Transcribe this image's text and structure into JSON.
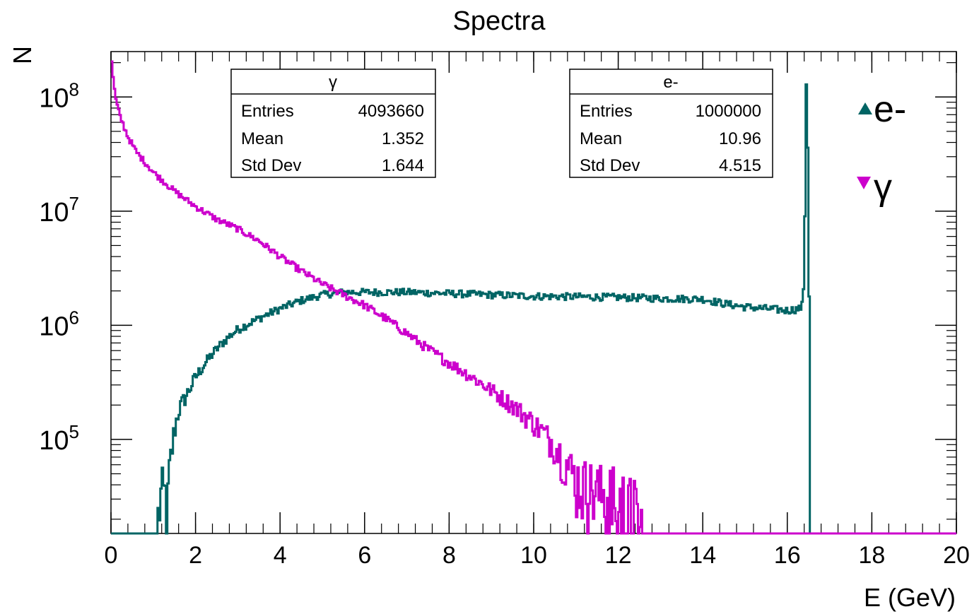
{
  "chart_data": {
    "type": "line",
    "title": "Spectra",
    "xlabel": "E (GeV)",
    "ylabel": "N",
    "xlim": [
      0,
      20
    ],
    "ylim": [
      15000,
      250000000
    ],
    "y_scale": "log",
    "grid": false,
    "legend_position": "right",
    "x_ticks": [
      "0",
      "2",
      "4",
      "6",
      "8",
      "10",
      "12",
      "14",
      "16",
      "18",
      "20"
    ],
    "y_ticks": [
      {
        "base": "10",
        "exp": "5",
        "value": 100000
      },
      {
        "base": "10",
        "exp": "6",
        "value": 1000000
      },
      {
        "base": "10",
        "exp": "7",
        "value": 10000000
      },
      {
        "base": "10",
        "exp": "8",
        "value": 100000000
      }
    ],
    "series": [
      {
        "name": "e-",
        "color": "#006464",
        "marker": "triangle-up",
        "points": [
          [
            0.0,
            15000
          ],
          [
            1.1,
            15000
          ],
          [
            1.15,
            30000
          ],
          [
            1.35,
            30000
          ],
          [
            1.4,
            60000
          ],
          [
            1.5,
            120000
          ],
          [
            1.6,
            180000
          ],
          [
            1.8,
            250000
          ],
          [
            2.0,
            350000
          ],
          [
            2.2,
            450000
          ],
          [
            2.4,
            560000
          ],
          [
            2.6,
            680000
          ],
          [
            2.8,
            800000
          ],
          [
            3.0,
            920000
          ],
          [
            3.5,
            1150000
          ],
          [
            4.0,
            1400000
          ],
          [
            4.5,
            1650000
          ],
          [
            5.0,
            1850000
          ],
          [
            5.5,
            1950000
          ],
          [
            6.0,
            1950000
          ],
          [
            7.0,
            1950000
          ],
          [
            8.0,
            1900000
          ],
          [
            9.0,
            1850000
          ],
          [
            10.0,
            1800000
          ],
          [
            11.0,
            1780000
          ],
          [
            12.0,
            1760000
          ],
          [
            13.0,
            1720000
          ],
          [
            14.0,
            1700000
          ],
          [
            14.5,
            1550000
          ],
          [
            15.0,
            1450000
          ],
          [
            15.5,
            1400000
          ],
          [
            16.0,
            1350000
          ],
          [
            16.3,
            1400000
          ],
          [
            16.35,
            1500000
          ],
          [
            16.4,
            2500000
          ],
          [
            16.45,
            130000000
          ],
          [
            16.5,
            20000000
          ],
          [
            16.55,
            15000
          ],
          [
            20.0,
            15000
          ]
        ]
      },
      {
        "name": "γ",
        "color": "#cc00cc",
        "marker": "triangle-down",
        "points": [
          [
            0.0,
            230000000
          ],
          [
            0.05,
            150000000
          ],
          [
            0.1,
            100000000
          ],
          [
            0.2,
            70000000
          ],
          [
            0.4,
            45000000
          ],
          [
            0.6,
            33000000
          ],
          [
            0.8,
            27000000
          ],
          [
            1.0,
            22000000
          ],
          [
            1.5,
            15000000
          ],
          [
            2.0,
            11000000
          ],
          [
            2.5,
            8500000
          ],
          [
            3.0,
            7000000
          ],
          [
            3.5,
            5500000
          ],
          [
            4.0,
            4000000
          ],
          [
            4.5,
            3000000
          ],
          [
            5.0,
            2300000
          ],
          [
            5.5,
            1850000
          ],
          [
            6.0,
            1500000
          ],
          [
            6.5,
            1150000
          ],
          [
            7.0,
            850000
          ],
          [
            7.5,
            620000
          ],
          [
            8.0,
            470000
          ],
          [
            8.5,
            360000
          ],
          [
            9.0,
            270000
          ],
          [
            9.5,
            200000
          ],
          [
            10.0,
            140000
          ],
          [
            10.5,
            90000
          ],
          [
            10.8,
            60000
          ],
          [
            11.0,
            45000
          ],
          [
            11.5,
            35000
          ],
          [
            12.0,
            30000
          ],
          [
            12.5,
            20000
          ],
          [
            12.6,
            15000
          ],
          [
            20.0,
            15000
          ]
        ]
      }
    ],
    "stats_boxes": [
      {
        "name": "γ",
        "rows": [
          {
            "label": "Entries",
            "value": "4093660"
          },
          {
            "label": "Mean",
            "value": "1.352"
          },
          {
            "label": "Std Dev",
            "value": "1.644"
          }
        ]
      },
      {
        "name": "e-",
        "rows": [
          {
            "label": "Entries",
            "value": "1000000"
          },
          {
            "label": "Mean",
            "value": "10.96"
          },
          {
            "label": "Std Dev",
            "value": "4.515"
          }
        ]
      }
    ]
  }
}
